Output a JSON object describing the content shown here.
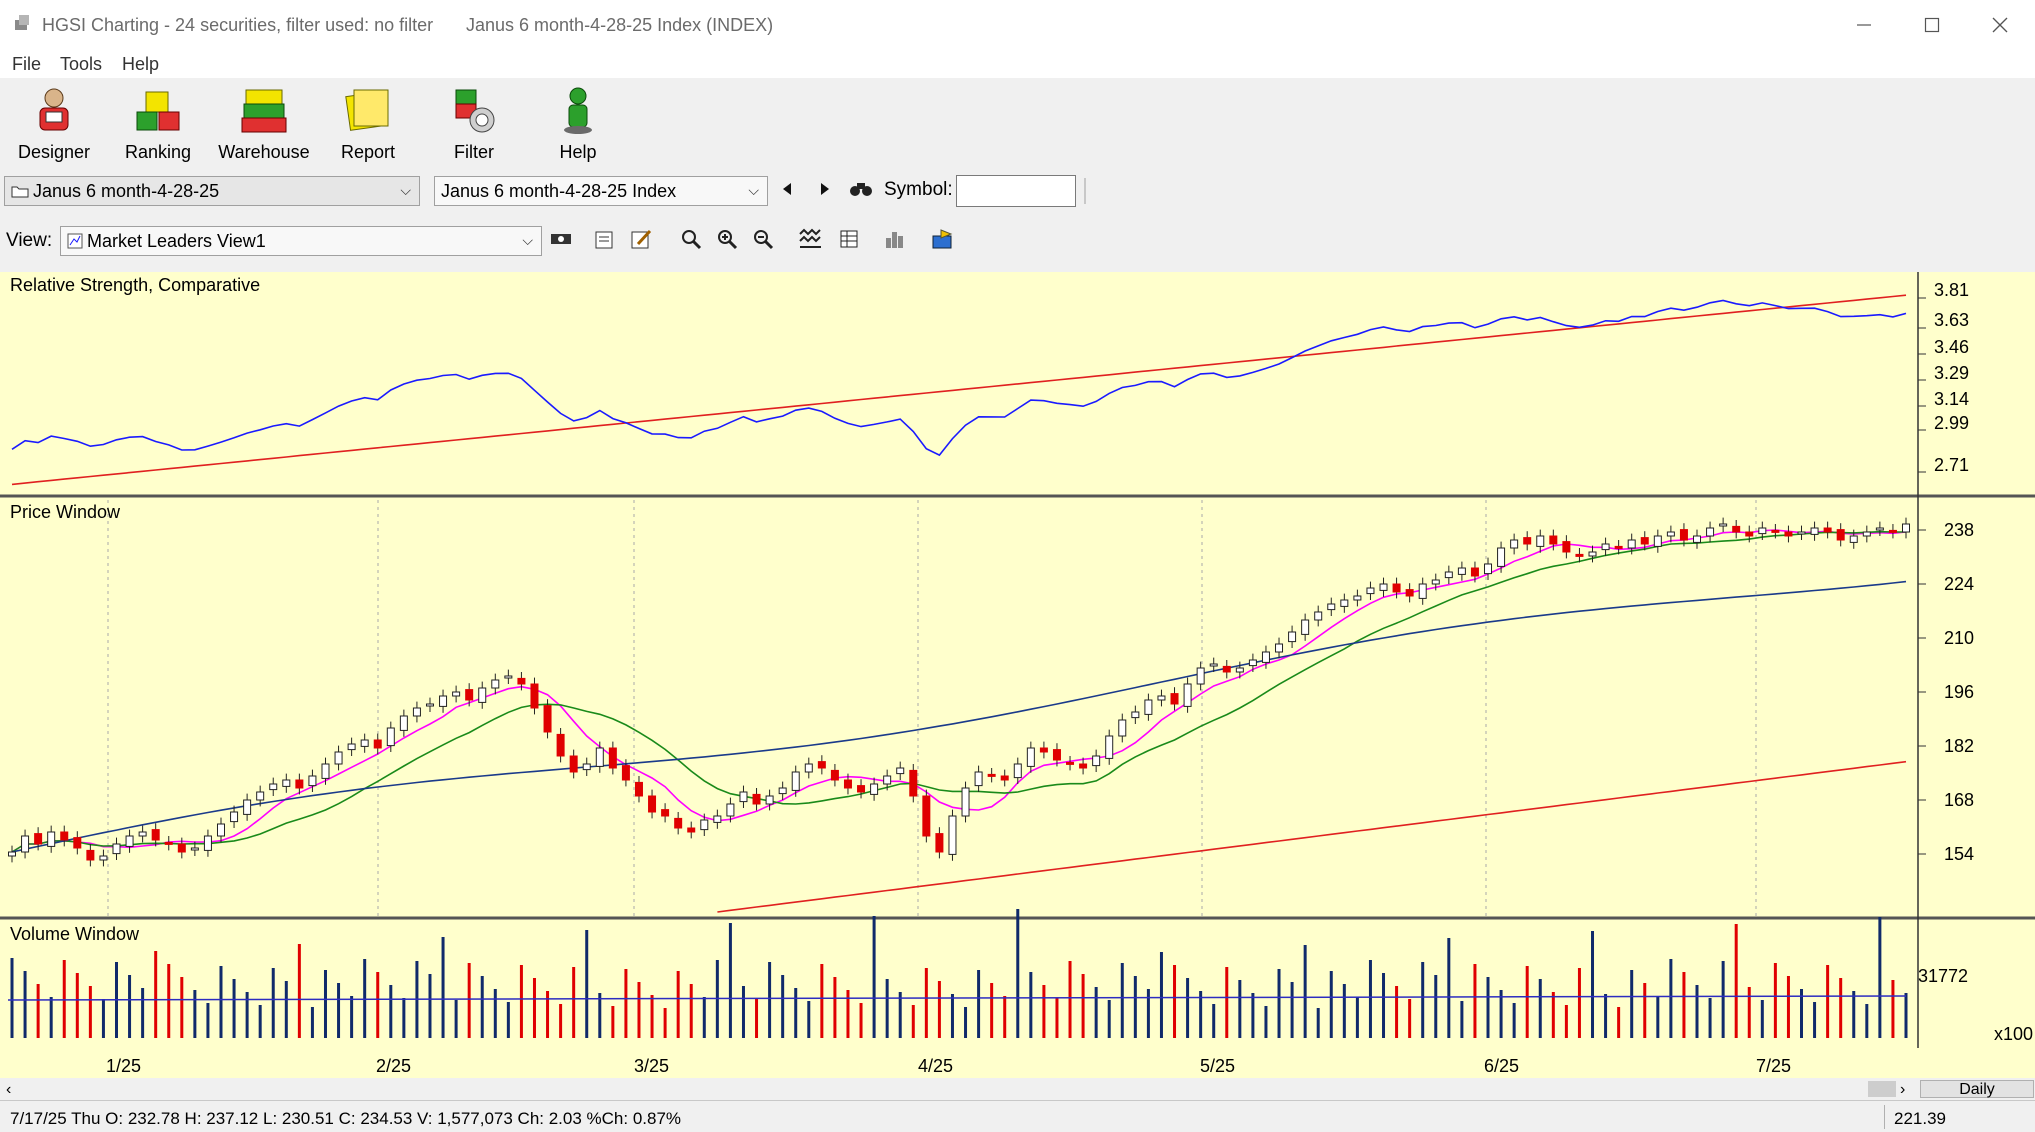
{
  "window": {
    "app_title": "HGSI Charting - 24 securities, filter used: no filter",
    "doc_title": "Janus 6 month-4-28-25 Index (INDEX)"
  },
  "menu": [
    "File",
    "Tools",
    "Help"
  ],
  "toolbar": [
    {
      "label": "Designer",
      "icon": "designer-icon"
    },
    {
      "label": "Ranking",
      "icon": "ranking-icon"
    },
    {
      "label": "Warehouse",
      "icon": "warehouse-icon"
    },
    {
      "label": "Report",
      "icon": "report-icon"
    },
    {
      "label": "Filter",
      "icon": "filter-icon"
    },
    {
      "label": "Help",
      "icon": "help-icon"
    }
  ],
  "selectors": {
    "folder_value": "Janus 6 month-4-28-25",
    "index_value": "Janus 6 month-4-28-25 Index",
    "symbol_label": "Symbol:",
    "symbol_value": "",
    "view_label": "View:",
    "view_value": "Market Leaders View1"
  },
  "panels": {
    "rs_title": "Relative Strength, Comparative",
    "price_title": "Price Window",
    "volume_title": "Volume Window"
  },
  "chart_data": {
    "type": "candlestick",
    "rs_axis_ticks": [
      "3.81",
      "3.63",
      "3.46",
      "3.29",
      "3.14",
      "2.99",
      "2.71"
    ],
    "price_axis_ticks": [
      "238",
      "224",
      "210",
      "196",
      "182",
      "168",
      "154"
    ],
    "volume_axis_ticks": [
      "31772"
    ],
    "volume_multiplier": "x100",
    "x_ticks": [
      "1/25",
      "2/25",
      "3/25",
      "4/25",
      "5/25",
      "6/25",
      "7/25"
    ],
    "period": "Daily",
    "closes_approx": [
      156,
      160,
      158,
      161,
      159,
      157,
      154,
      155,
      158,
      160,
      161,
      159,
      158,
      156,
      157,
      160,
      163,
      166,
      169,
      171,
      173,
      174,
      172,
      175,
      178,
      181,
      183,
      184,
      182,
      187,
      190,
      192,
      193,
      195,
      196,
      194,
      197,
      199,
      200,
      198,
      192,
      186,
      180,
      176,
      178,
      182,
      177,
      174,
      170,
      166,
      165,
      162,
      161,
      164,
      165,
      168,
      171,
      168,
      170,
      172,
      176,
      178,
      177,
      174,
      172,
      171,
      173,
      175,
      177,
      170,
      160,
      156,
      165,
      172,
      176,
      175,
      174,
      178,
      182,
      181,
      179,
      178,
      177,
      180,
      185,
      189,
      191,
      194,
      195,
      193,
      198,
      202,
      203,
      201,
      202,
      204,
      206,
      208,
      211,
      214,
      216,
      218,
      219,
      220,
      222,
      223,
      221,
      220,
      223,
      224,
      226,
      227,
      225,
      228,
      232,
      234,
      233,
      235,
      233,
      231,
      230,
      231,
      233,
      232,
      234,
      233,
      235,
      236,
      234,
      235,
      237,
      238,
      236,
      235,
      237,
      236,
      235,
      236,
      237,
      236,
      234,
      235,
      236,
      237,
      236,
      238
    ],
    "volume_last": "1,577,073",
    "status": {
      "date": "7/17/25 Thu",
      "open": "232.78",
      "high": "237.12",
      "low": "230.51",
      "close": "234.53",
      "volume": "1,577,073",
      "change": "2.03",
      "pct_change": "0.87%"
    },
    "series_colors": {
      "rs_line": "#1a1aff",
      "rs_ma": "#e02020",
      "ma_short": "#ff00ff",
      "ma_mid": "#1a8a1a",
      "ma_long": "#1a3a8a",
      "ma_longest": "#e02020",
      "up_candle": "#ffffff",
      "down_candle": "#e00000",
      "volume_up": "#102a6a",
      "volume_down": "#e00000"
    },
    "cursor_value": "221.39"
  },
  "status_text": "7/17/25 Thu O: 232.78 H: 237.12 L: 230.51 C: 234.53 V: 1,577,073 Ch: 2.03 %Ch: 0.87%"
}
